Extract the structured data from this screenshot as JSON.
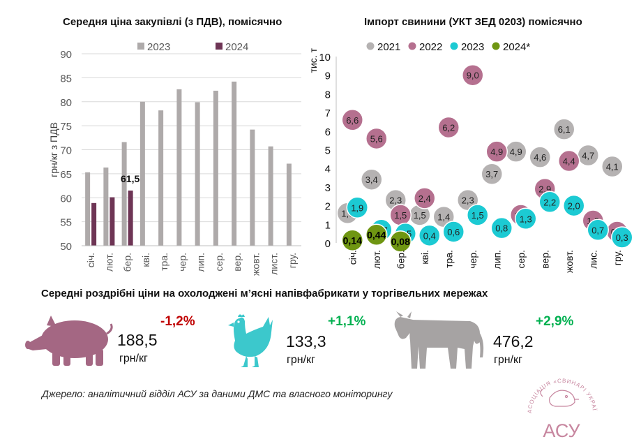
{
  "chart_data": [
    {
      "type": "bar",
      "title": "Середня ціна закупівлі (з ПДВ), помісячно",
      "ylabel": "грн/кг з ПДВ",
      "ylim": [
        50,
        90
      ],
      "yticks": [
        "50",
        "55",
        "60",
        "65",
        "70",
        "75",
        "80",
        "85",
        "90"
      ],
      "categories": [
        "січ.",
        "лют.",
        "бер.",
        "кві.",
        "тра.",
        "чер.",
        "лип.",
        "сер.",
        "вер.",
        "жовт.",
        "лист.",
        "гру."
      ],
      "series": [
        {
          "name": "2023",
          "color": "#aeaaaa",
          "values": [
            65.3,
            66.3,
            71.6,
            80.0,
            78.2,
            82.6,
            79.9,
            82.3,
            84.2,
            74.2,
            70.7,
            67.1
          ]
        },
        {
          "name": "2024",
          "color": "#6e3555",
          "values": [
            58.9,
            60.1,
            61.5,
            null,
            null,
            null,
            null,
            null,
            null,
            null,
            null,
            null
          ]
        }
      ],
      "data_labels": [
        {
          "series": "2024",
          "index": 2,
          "text": "61,5"
        }
      ],
      "legend": "top"
    },
    {
      "type": "scatter",
      "title": "Імпорт свинини (УКТ ЗЕД 0203) помісячно",
      "ylabel": "тис. т",
      "ylim": [
        0,
        10
      ],
      "yticks": [
        "0",
        "1",
        "2",
        "3",
        "4",
        "5",
        "6",
        "7",
        "8",
        "9",
        "10"
      ],
      "categories": [
        "січ.",
        "лют.",
        "бер.",
        "кві.",
        "тра.",
        "чер.",
        "лип.",
        "сер.",
        "вер.",
        "жовт.",
        "лис.",
        "гру."
      ],
      "series": [
        {
          "name": "2021",
          "color": "#b5b2b2",
          "values": [
            1.6,
            3.4,
            2.3,
            1.5,
            1.4,
            2.3,
            3.7,
            4.9,
            4.6,
            6.1,
            4.7,
            4.1
          ],
          "labels": [
            "1,6",
            "3,4",
            "2,3",
            "1,5",
            "1,4",
            "2,3",
            "3,7",
            "4,9",
            "4,6",
            "6,1",
            "4,7",
            "4,1"
          ]
        },
        {
          "name": "2022",
          "color": "#b5708f",
          "values": [
            6.6,
            5.6,
            1.5,
            2.4,
            6.2,
            9.0,
            4.9,
            1.5,
            2.9,
            4.4,
            1.2,
            0.6
          ],
          "labels": [
            "6,6",
            "5,6",
            "1,5",
            "2,4",
            "6,2",
            "9,0",
            "4,9",
            "1,5",
            "2,9",
            "4,4",
            "1,2",
            "0,6"
          ]
        },
        {
          "name": "2023",
          "color": "#1ccad3",
          "values": [
            1.9,
            0.7,
            0.5,
            0.4,
            0.6,
            1.5,
            0.8,
            1.3,
            2.2,
            2.0,
            0.7,
            0.3
          ],
          "labels": [
            "1,9",
            "0,7",
            "0,5",
            "0,4",
            "0,6",
            "1,5",
            "0,8",
            "1,3",
            "2,2",
            "2,0",
            "0,7",
            "0,3"
          ]
        },
        {
          "name": "2024*",
          "color": "#6f9612",
          "values": [
            0.14,
            0.44,
            0.08,
            null,
            null,
            null,
            null,
            null,
            null,
            null,
            null,
            null
          ],
          "labels": [
            "0,14",
            "0,44",
            "0,08",
            "",
            "",
            "",
            "",
            "",
            "",
            "",
            "",
            ""
          ]
        }
      ],
      "legend": "top"
    }
  ],
  "retail": {
    "title": "Середні роздрібні ціни на охолоджені м’ясні напівфабрикати у торгівельних мережах",
    "items": [
      {
        "icon": "pig-icon",
        "price": "188,5",
        "unit": "грн/кг",
        "change": "-1,2%",
        "change_color": "#c00000",
        "icon_color": "#a46783"
      },
      {
        "icon": "chicken-icon",
        "price": "133,3",
        "unit": "грн/кг",
        "change": "+1,1%",
        "change_color": "#00b050",
        "icon_color": "#3cc8cc"
      },
      {
        "icon": "cow-icon",
        "price": "476,2",
        "unit": "грн/кг",
        "change": "+2,9%",
        "change_color": "#00b050",
        "icon_color": "#a6a3a3"
      }
    ]
  },
  "source": "Джерело: аналітичний відділ АСУ за даними ДМС та власного моніторингу",
  "logo": {
    "text": "АСУ",
    "ring_text": "АСОЦІАЦІЯ «СВИНАРІ УКРАЇНИ»",
    "color": "#c7869f"
  }
}
